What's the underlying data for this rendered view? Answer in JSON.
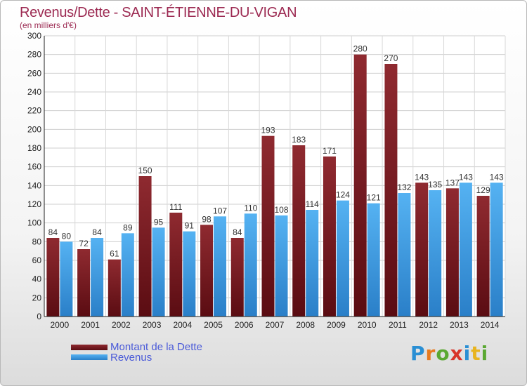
{
  "chart_data": {
    "type": "bar",
    "title": "Revenus/Dette - SAINT-ÉTIENNE-DU-VIGAN",
    "subtitle": "(en milliers d'€)",
    "xlabel": "",
    "ylabel": "",
    "ylim": [
      0,
      300
    ],
    "yticks": [
      0,
      20,
      40,
      60,
      80,
      100,
      120,
      140,
      160,
      180,
      200,
      220,
      240,
      260,
      280,
      300
    ],
    "grid": true,
    "legend_position": "bottom-left",
    "categories": [
      "2000",
      "2001",
      "2002",
      "2003",
      "2004",
      "2005",
      "2006",
      "2007",
      "2008",
      "2009",
      "2010",
      "2011",
      "2012",
      "2013",
      "2014"
    ],
    "series": [
      {
        "name": "Montant de la Dette",
        "color": "#7a1c22",
        "values": [
          84,
          72,
          61,
          150,
          111,
          98,
          84,
          193,
          183,
          171,
          280,
          270,
          143,
          137,
          129
        ]
      },
      {
        "name": "Revenus",
        "color": "#3d9ee6",
        "values": [
          80,
          84,
          89,
          95,
          91,
          107,
          110,
          108,
          114,
          124,
          121,
          132,
          135,
          143,
          143
        ]
      }
    ]
  },
  "logo": {
    "letters": [
      "P",
      "r",
      "o",
      "x",
      "i",
      "t",
      "i"
    ],
    "colors": [
      "#2a8fd4",
      "#e87a1e",
      "#5aa832",
      "#d8342a",
      "#2a8fd4",
      "#e8b41e",
      "#5aa832"
    ]
  }
}
